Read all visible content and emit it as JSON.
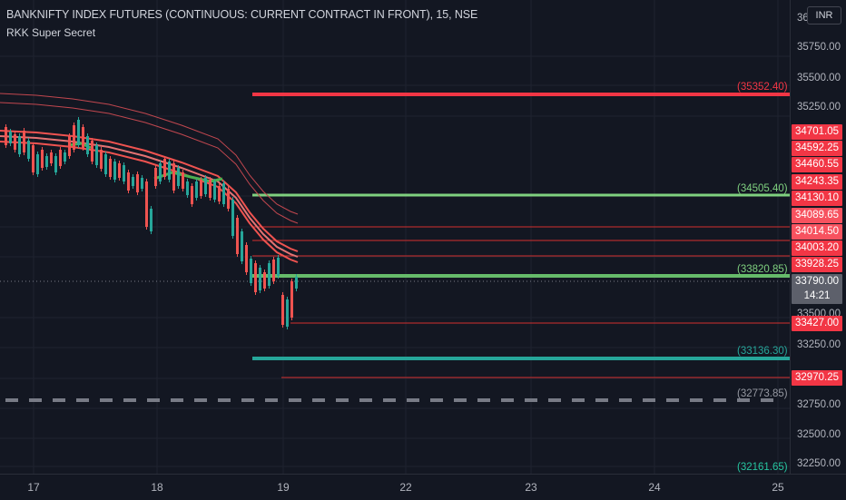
{
  "header": {
    "title": "BANKNIFTY INDEX FUTURES (CONTINUOUS: CURRENT CONTRACT IN FRONT), 15, NSE",
    "indicator": "RKK Super Secret"
  },
  "currency_button": "INR",
  "price_axis": {
    "ticks": [
      "36",
      "35750.00",
      "35500.00",
      "35250.00",
      "33500.00",
      "33250.00",
      "32750.00",
      "32500.00",
      "32250.00"
    ]
  },
  "price_badges": [
    {
      "value": "34701.05",
      "color": "#f23645"
    },
    {
      "value": "34592.25",
      "color": "#f23645"
    },
    {
      "value": "34460.55",
      "color": "#f23645"
    },
    {
      "value": "34243.35",
      "color": "#f23645"
    },
    {
      "value": "34130.10",
      "color": "#f23645"
    },
    {
      "value": "34089.65",
      "color": "#f7525f"
    },
    {
      "value": "34014.50",
      "color": "#f7525f"
    },
    {
      "value": "34003.20",
      "color": "#f23645"
    },
    {
      "value": "33928.25",
      "color": "#f23645"
    },
    {
      "value": "33790.00",
      "color": "#5d606b"
    },
    {
      "value": "14:21",
      "color": "#5d606b"
    },
    {
      "value": "33427.00",
      "color": "#f23645"
    },
    {
      "value": "32970.25",
      "color": "#f23645"
    }
  ],
  "level_labels": [
    {
      "text": "(35352.40)",
      "color": "#f23645"
    },
    {
      "text": "(34505.40)",
      "color": "#7fd17f"
    },
    {
      "text": "(33820.85)",
      "color": "#7fd17f"
    },
    {
      "text": "(33136.30)",
      "color": "#26a69a"
    },
    {
      "text": "(32773.85)",
      "color": "#9598a1"
    },
    {
      "text": "(32161.65)",
      "color": "#26c6a0"
    }
  ],
  "time_axis": {
    "labels": [
      "17",
      "18",
      "19",
      "22",
      "23",
      "24",
      "25"
    ]
  }
}
